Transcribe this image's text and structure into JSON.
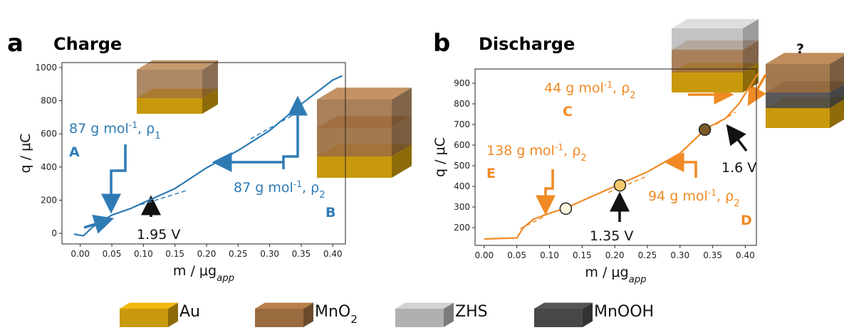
{
  "chart_data": [
    {
      "type": "line",
      "panel": "a",
      "title": "Charge",
      "x_label": {
        "text": "m",
        "sub": "app",
        "text2": " / μg"
      },
      "y_label": "q / μC",
      "xlim": [
        -0.029,
        0.42
      ],
      "ylim": [
        -64,
        1030
      ],
      "xticks": [
        {
          "value": 0,
          "label": "0.00"
        },
        {
          "value": 0.05,
          "label": "0.05"
        },
        {
          "value": 0.1,
          "label": "0.10"
        },
        {
          "value": 0.15,
          "label": "0.15"
        },
        {
          "value": 0.2,
          "label": "0.20"
        },
        {
          "value": 0.25,
          "label": "0.25"
        },
        {
          "value": 0.3,
          "label": "0.30"
        },
        {
          "value": 0.35,
          "label": "0.35"
        },
        {
          "value": 0.4,
          "label": "0.40"
        }
      ],
      "yticks": [
        0,
        200,
        400,
        600,
        800,
        1000
      ],
      "series": [
        {
          "color": "#2e7bb4",
          "style": "solid",
          "x": [
            -0.01,
            0.005,
            0.02,
            0.05,
            0.08,
            0.1,
            0.15,
            0.2,
            0.25,
            0.3,
            0.35,
            0.4,
            0.415
          ],
          "values": [
            -5,
            -15,
            40,
            110,
            150,
            185,
            270,
            395,
            500,
            620,
            780,
            925,
            950
          ]
        },
        {
          "color": "#2e7bb4",
          "style": "dashed",
          "x": [
            0.085,
            0.17
          ],
          "values": [
            160,
            260
          ]
        },
        {
          "color": "#2e7bb4",
          "style": "dashed",
          "x": [
            0.27,
            0.34
          ],
          "values": [
            570,
            720
          ]
        }
      ],
      "annotations": [
        {
          "text": "87 g mol",
          "sup": "-1",
          "text2": ", ρ",
          "sub": "1",
          "color": "#2e7bb4"
        },
        {
          "text": "A",
          "color": "#2e7bb4"
        },
        {
          "text": "87 g mol",
          "sup": "-1",
          "text2": ", ρ",
          "sub": "2",
          "color": "#2e7bb4"
        },
        {
          "text": "B",
          "color": "#2e7bb4"
        },
        {
          "text": "1.95 V",
          "color": "#111111"
        }
      ]
    },
    {
      "type": "line",
      "panel": "b",
      "title": "Discharge",
      "x_label": {
        "text": "m",
        "sub": "app",
        "text2": " / μg"
      },
      "y_label": "q / μC",
      "xlim": [
        -0.014,
        0.417
      ],
      "ylim": [
        114,
        969
      ],
      "xticks": [
        {
          "value": 0,
          "label": "0.00"
        },
        {
          "value": 0.05,
          "label": "0.05"
        },
        {
          "value": 0.1,
          "label": "0.10"
        },
        {
          "value": 0.15,
          "label": "0.15"
        },
        {
          "value": 0.2,
          "label": "0.20"
        },
        {
          "value": 0.25,
          "label": "0.25"
        },
        {
          "value": 0.3,
          "label": "0.30"
        },
        {
          "value": 0.35,
          "label": "0.35"
        },
        {
          "value": 0.4,
          "label": "0.40"
        }
      ],
      "yticks": [
        200,
        300,
        400,
        500,
        600,
        700,
        800,
        900
      ],
      "series": [
        {
          "color": "#f08a24",
          "style": "solid",
          "x": [
            0.0,
            0.05,
            0.06,
            0.075,
            0.1,
            0.125,
            0.15,
            0.2,
            0.25,
            0.3,
            0.34,
            0.37,
            0.39,
            0.41,
            0.42
          ],
          "values": [
            145,
            150,
            200,
            240,
            270,
            295,
            330,
            400,
            470,
            560,
            680,
            730,
            800,
            900,
            950
          ]
        },
        {
          "color": "#f08a24",
          "style": "dashed",
          "x": [
            0.055,
            0.09
          ],
          "values": [
            195,
            250
          ]
        },
        {
          "color": "#f08a24",
          "style": "dashed",
          "x": [
            0.19,
            0.25
          ],
          "values": [
            370,
            450
          ]
        },
        {
          "color": "#f08a24",
          "style": "dashed",
          "x": [
            0.355,
            0.385
          ],
          "values": [
            700,
            760
          ]
        },
        {
          "color": "#222222",
          "style": "markers",
          "colors": [
            "#fdf2dc",
            "#f5c868",
            "#7a5a2a"
          ],
          "x": [
            0.125,
            0.208,
            0.338
          ],
          "values": [
            292,
            405,
            675
          ]
        }
      ],
      "annotations": [
        {
          "text": "44 g mol",
          "sup": "-1",
          "text2": ", ρ",
          "sub": "2",
          "color": "#f08a24"
        },
        {
          "text": "C",
          "color": "#f08a24"
        },
        {
          "text": "138 g mol",
          "sup": "-1",
          "text2": ", ρ",
          "sub": "2",
          "color": "#f08a24"
        },
        {
          "text": "E",
          "color": "#f08a24"
        },
        {
          "text": "94 g mol",
          "sup": "-1",
          "text2": ", ρ",
          "sub": "2",
          "color": "#f08a24"
        },
        {
          "text": "D",
          "color": "#f08a24"
        },
        {
          "text": "1.35 V",
          "color": "#111111"
        },
        {
          "text": "1.6 V",
          "color": "#111111"
        },
        {
          "text": "?",
          "color": "#111111"
        }
      ]
    }
  ],
  "legend": [
    {
      "text": "Au",
      "color": "#c9990c"
    },
    {
      "text": "MnO",
      "sub": "2",
      "color": "#9a6b3e"
    },
    {
      "text": "ZHS",
      "color": "#b0b0b0"
    },
    {
      "text": "MnOOH",
      "color": "#484848"
    }
  ]
}
